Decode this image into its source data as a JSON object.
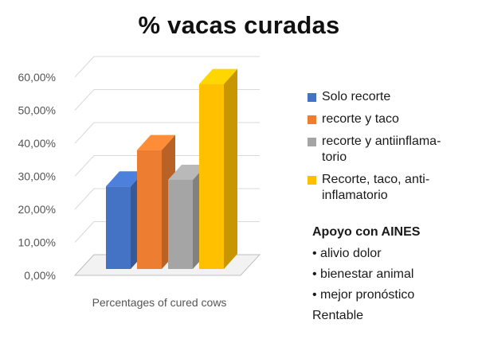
{
  "title": "% vacas curadas",
  "chart_data": {
    "type": "bar",
    "title": "% vacas curadas",
    "xlabel": "Percentages of cured cows",
    "ylabel": "",
    "ylim": [
      0,
      60
    ],
    "y_ticks": [
      "0,00%",
      "10,00%",
      "20,00%",
      "30,00%",
      "40,00%",
      "50,00%",
      "60,00%"
    ],
    "categories": [
      "Percentages of cured cows"
    ],
    "series": [
      {
        "name": "Solo recorte",
        "values": [
          25
        ],
        "color": "#4472C4"
      },
      {
        "name": "recorte y taco",
        "values": [
          36
        ],
        "color": "#ED7D31"
      },
      {
        "name": "recorte y antiinflamatorio",
        "values": [
          27
        ],
        "color": "#A5A5A5"
      },
      {
        "name": "Recorte,  taco, antiinflamatorio",
        "values": [
          56
        ],
        "color": "#FFC000"
      }
    ],
    "grid": true,
    "legend_position": "right"
  },
  "legend": {
    "items": [
      {
        "line1": "Solo recorte",
        "line2": "",
        "color": "#4472C4"
      },
      {
        "line1": "recorte y taco",
        "line2": "",
        "color": "#ED7D31"
      },
      {
        "line1": "recorte y antiinflama-",
        "line2": "torio",
        "color": "#A5A5A5"
      },
      {
        "line1": "Recorte,  taco, anti-",
        "line2": "inflamatorio",
        "color": "#FFC000"
      }
    ]
  },
  "notes": {
    "heading": "Apoyo con AINES",
    "bullets": [
      "• alivio dolor",
      "• bienestar animal",
      "• mejor pronóstico"
    ],
    "footer": "Rentable"
  }
}
